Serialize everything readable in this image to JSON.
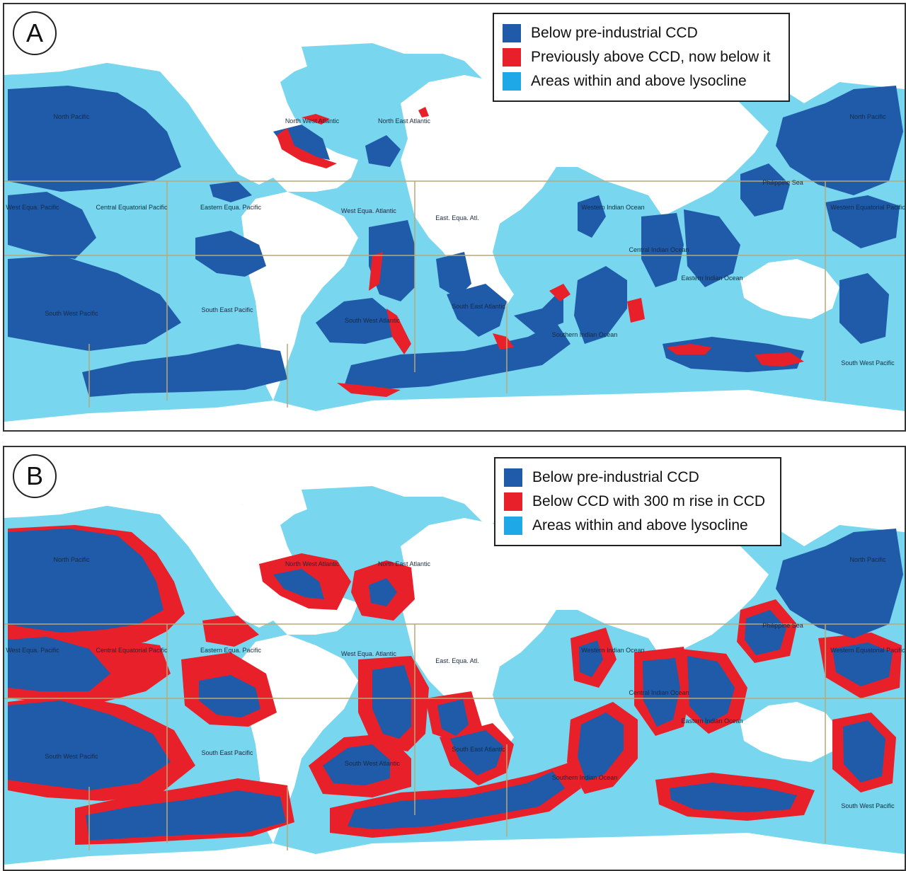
{
  "colors": {
    "deep_blue": "#1f5ba8",
    "red": "#e8202a",
    "light_blue": "#78d6ef",
    "lysocline_swatch": "#1fa8e8",
    "land": "#ffffff",
    "boundary": "#b9a878"
  },
  "panels": [
    {
      "id": "A",
      "badge": "A",
      "legend": [
        {
          "label": "Below pre-industrial CCD",
          "swatch": "deep_blue"
        },
        {
          "label": "Previously above CCD, now below it",
          "swatch": "red"
        },
        {
          "label": "Areas within and above lysocline",
          "swatch": "lysocline_swatch"
        }
      ]
    },
    {
      "id": "B",
      "badge": "B",
      "legend": [
        {
          "label": "Below pre-industrial CCD",
          "swatch": "deep_blue"
        },
        {
          "label": "Below CCD with 300 m rise in CCD",
          "swatch": "red"
        },
        {
          "label": "Areas within and above lysocline",
          "swatch": "lysocline_swatch"
        }
      ]
    }
  ],
  "regions": [
    "North Pacific",
    "North West Atlantic",
    "North East Atlantic",
    "North Pacific",
    "West Equa. Pacific",
    "Central Equatorial Pacific",
    "Eastern Equa. Pacific",
    "West Equa. Atlantic",
    "East. Equa. Atl.",
    "Western Indian Ocean",
    "Central Indian Ocean",
    "Eastern Indian Ocean",
    "Philippine Sea",
    "Western Equatorial Pacific",
    "South West Pacific",
    "South East Pacific",
    "South West Atlantic",
    "South East Atlantic",
    "Southern Indian Ocean",
    "South West Pacific"
  ]
}
